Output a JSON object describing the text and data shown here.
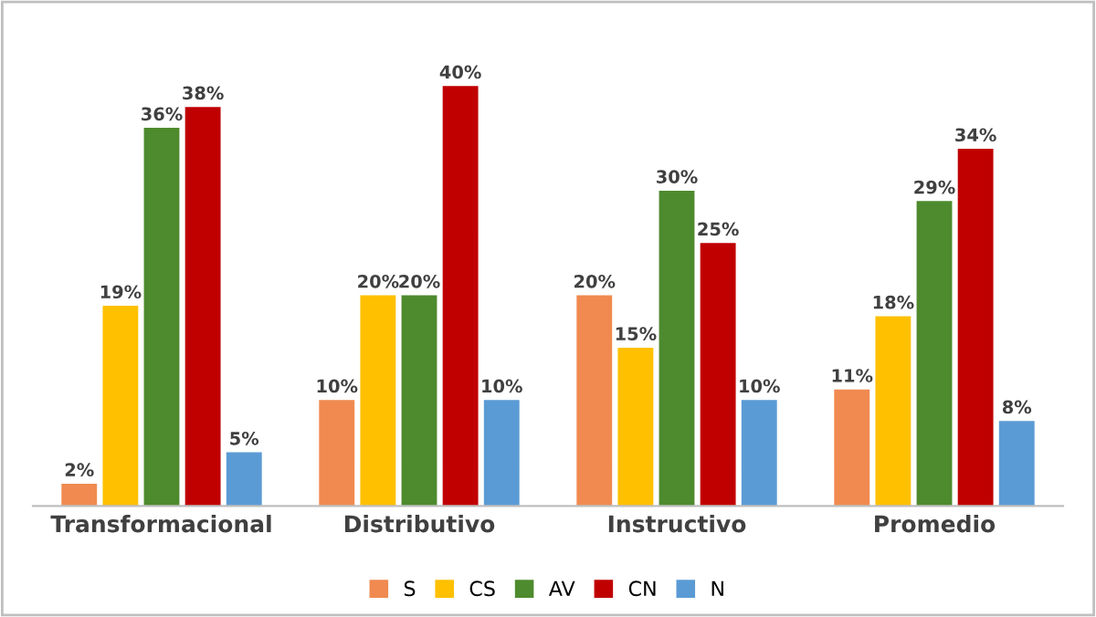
{
  "chart_data": {
    "type": "bar",
    "categories": [
      "Transformacional",
      "Distributivo",
      "Instructivo",
      "Promedio"
    ],
    "series": [
      {
        "name": "S",
        "color": "#f08a50",
        "values": [
          2,
          10,
          20,
          11
        ],
        "value_labels": [
          "2%",
          "10%",
          "20%",
          "11%"
        ]
      },
      {
        "name": "CS",
        "color": "#ffc000",
        "values": [
          19,
          20,
          15,
          18
        ],
        "value_labels": [
          "19%",
          "20%",
          "15%",
          "18%"
        ]
      },
      {
        "name": "AV",
        "color": "#4e8a2e",
        "values": [
          36,
          20,
          30,
          29
        ],
        "value_labels": [
          "36%",
          "20%",
          "30%",
          "29%"
        ]
      },
      {
        "name": "CN",
        "color": "#c00000",
        "values": [
          38,
          40,
          25,
          34
        ],
        "value_labels": [
          "38%",
          "40%",
          "25%",
          "34%"
        ]
      },
      {
        "name": "N",
        "color": "#5b9bd5",
        "values": [
          5,
          10,
          10,
          8
        ],
        "value_labels": [
          "5%",
          "10%",
          "10%",
          "8%"
        ]
      }
    ],
    "legend": "bottom"
  }
}
